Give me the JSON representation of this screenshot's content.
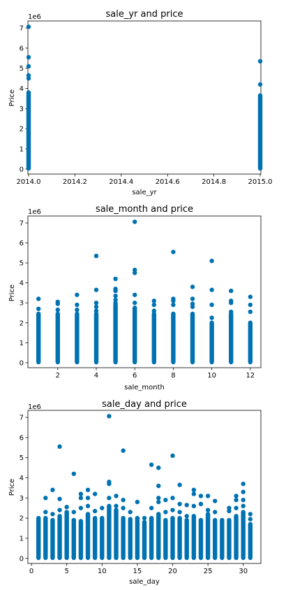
{
  "chart_data": [
    {
      "type": "scatter",
      "title": "sale_yr and price",
      "xlabel": "sale_yr",
      "ylabel": "Price",
      "offset_label": "1e6",
      "xlim": [
        1.997,
        3.003
      ],
      "ylim": [
        -0.25,
        7.35
      ],
      "xticks": [
        2014.0,
        2014.2,
        2014.4,
        2014.6,
        2014.8,
        2015.0
      ],
      "xtick_labels": [
        "2014.0",
        "2014.2",
        "2014.4",
        "2014.6",
        "2014.8",
        "2015.0"
      ],
      "yticks": [
        0,
        1,
        2,
        3,
        4,
        5,
        6,
        7
      ],
      "ytick_labels": [
        "0",
        "1",
        "2",
        "3",
        "4",
        "5",
        "6",
        "7"
      ],
      "color": "#0072b2",
      "x_index_base": 2012,
      "points": [
        {
          "x": 2014,
          "y": 7.06
        },
        {
          "x": 2014,
          "y": 5.55
        },
        {
          "x": 2014,
          "y": 5.1
        },
        {
          "x": 2014,
          "y": 4.65
        },
        {
          "x": 2014,
          "y": 4.5
        },
        {
          "x": 2015,
          "y": 5.35
        },
        {
          "x": 2015,
          "y": 4.2
        }
      ],
      "columns": [
        {
          "x": 2014,
          "top": 3.8
        },
        {
          "x": 2015,
          "top": 3.65
        }
      ]
    },
    {
      "type": "scatter",
      "title": "sale_month and price",
      "xlabel": "sale_month",
      "ylabel": "Price",
      "offset_label": "1e6",
      "xlim": [
        0.45,
        12.55
      ],
      "ylim": [
        -0.25,
        7.35
      ],
      "xticks": [
        2,
        4,
        6,
        8,
        10,
        12
      ],
      "xtick_labels": [
        "2",
        "4",
        "6",
        "8",
        "10",
        "12"
      ],
      "yticks": [
        0,
        1,
        2,
        3,
        4,
        5,
        6,
        7
      ],
      "ytick_labels": [
        "0",
        "1",
        "2",
        "3",
        "4",
        "5",
        "6",
        "7"
      ],
      "color": "#0072b2",
      "points": [
        {
          "x": 1,
          "y": 3.2
        },
        {
          "x": 1,
          "y": 2.7
        },
        {
          "x": 2,
          "y": 3.05
        },
        {
          "x": 2,
          "y": 2.95
        },
        {
          "x": 2,
          "y": 2.65
        },
        {
          "x": 3,
          "y": 3.4
        },
        {
          "x": 3,
          "y": 2.9
        },
        {
          "x": 3,
          "y": 2.65
        },
        {
          "x": 4,
          "y": 5.35
        },
        {
          "x": 4,
          "y": 3.65
        },
        {
          "x": 4,
          "y": 3.0
        },
        {
          "x": 4,
          "y": 2.8
        },
        {
          "x": 4,
          "y": 2.6
        },
        {
          "x": 5,
          "y": 4.2
        },
        {
          "x": 5,
          "y": 3.7
        },
        {
          "x": 5,
          "y": 3.6
        },
        {
          "x": 5,
          "y": 3.35
        },
        {
          "x": 5,
          "y": 3.15
        },
        {
          "x": 5,
          "y": 3.0
        },
        {
          "x": 6,
          "y": 7.06
        },
        {
          "x": 6,
          "y": 4.65
        },
        {
          "x": 6,
          "y": 4.5
        },
        {
          "x": 6,
          "y": 3.4
        },
        {
          "x": 6,
          "y": 3.0
        },
        {
          "x": 7,
          "y": 3.1
        },
        {
          "x": 7,
          "y": 2.9
        },
        {
          "x": 7,
          "y": 2.6
        },
        {
          "x": 8,
          "y": 5.55
        },
        {
          "x": 8,
          "y": 3.2
        },
        {
          "x": 8,
          "y": 3.1
        },
        {
          "x": 8,
          "y": 2.9
        },
        {
          "x": 9,
          "y": 3.8
        },
        {
          "x": 9,
          "y": 3.2
        },
        {
          "x": 9,
          "y": 2.95
        },
        {
          "x": 9,
          "y": 2.8
        },
        {
          "x": 10,
          "y": 5.1
        },
        {
          "x": 10,
          "y": 3.65
        },
        {
          "x": 10,
          "y": 2.9
        },
        {
          "x": 10,
          "y": 2.25
        },
        {
          "x": 11,
          "y": 3.6
        },
        {
          "x": 11,
          "y": 3.1
        },
        {
          "x": 11,
          "y": 3.0
        },
        {
          "x": 11,
          "y": 2.55
        },
        {
          "x": 12,
          "y": 3.3
        },
        {
          "x": 12,
          "y": 2.9
        },
        {
          "x": 12,
          "y": 2.55
        }
      ],
      "columns": [
        {
          "x": 1,
          "top": 2.45
        },
        {
          "x": 2,
          "top": 2.45
        },
        {
          "x": 3,
          "top": 2.45
        },
        {
          "x": 4,
          "top": 2.45
        },
        {
          "x": 5,
          "top": 2.9
        },
        {
          "x": 6,
          "top": 2.75
        },
        {
          "x": 7,
          "top": 2.45
        },
        {
          "x": 8,
          "top": 2.45
        },
        {
          "x": 9,
          "top": 2.45
        },
        {
          "x": 10,
          "top": 2.0
        },
        {
          "x": 11,
          "top": 2.45
        },
        {
          "x": 12,
          "top": 2.0
        }
      ]
    },
    {
      "type": "scatter",
      "title": "sale_day and price",
      "xlabel": "sale_day",
      "ylabel": "Price",
      "offset_label": "1e6",
      "xlim": [
        -0.5,
        32.5
      ],
      "ylim": [
        -0.25,
        7.35
      ],
      "xticks": [
        0,
        5,
        10,
        15,
        20,
        25,
        30
      ],
      "xtick_labels": [
        "0",
        "5",
        "10",
        "15",
        "20",
        "25",
        "30"
      ],
      "yticks": [
        0,
        1,
        2,
        3,
        4,
        5,
        6,
        7
      ],
      "ytick_labels": [
        "0",
        "1",
        "2",
        "3",
        "4",
        "5",
        "6",
        "7"
      ],
      "color": "#0072b2",
      "points": [
        {
          "x": 2,
          "y": 3.0
        },
        {
          "x": 2,
          "y": 2.3
        },
        {
          "x": 3,
          "y": 3.4
        },
        {
          "x": 3,
          "y": 2.2
        },
        {
          "x": 4,
          "y": 5.55
        },
        {
          "x": 4,
          "y": 2.95
        },
        {
          "x": 4,
          "y": 2.4
        },
        {
          "x": 5,
          "y": 2.55
        },
        {
          "x": 6,
          "y": 4.2
        },
        {
          "x": 6,
          "y": 2.3
        },
        {
          "x": 7,
          "y": 3.2
        },
        {
          "x": 7,
          "y": 3.0
        },
        {
          "x": 7,
          "y": 2.5
        },
        {
          "x": 8,
          "y": 3.4
        },
        {
          "x": 8,
          "y": 3.0
        },
        {
          "x": 8,
          "y": 2.6
        },
        {
          "x": 9,
          "y": 3.2
        },
        {
          "x": 9,
          "y": 2.35
        },
        {
          "x": 10,
          "y": 2.5
        },
        {
          "x": 11,
          "y": 7.06
        },
        {
          "x": 11,
          "y": 3.8
        },
        {
          "x": 11,
          "y": 3.7
        },
        {
          "x": 11,
          "y": 3.0
        },
        {
          "x": 12,
          "y": 3.1
        },
        {
          "x": 12,
          "y": 2.6
        },
        {
          "x": 13,
          "y": 5.35
        },
        {
          "x": 13,
          "y": 2.9
        },
        {
          "x": 13,
          "y": 2.5
        },
        {
          "x": 14,
          "y": 2.3
        },
        {
          "x": 15,
          "y": 2.8
        },
        {
          "x": 16,
          "y": 2.0
        },
        {
          "x": 17,
          "y": 4.65
        },
        {
          "x": 17,
          "y": 2.5
        },
        {
          "x": 18,
          "y": 4.5
        },
        {
          "x": 18,
          "y": 3.6
        },
        {
          "x": 18,
          "y": 3.0
        },
        {
          "x": 18,
          "y": 2.8
        },
        {
          "x": 19,
          "y": 2.9
        },
        {
          "x": 19,
          "y": 2.3
        },
        {
          "x": 20,
          "y": 5.1
        },
        {
          "x": 20,
          "y": 3.0
        },
        {
          "x": 20,
          "y": 2.4
        },
        {
          "x": 21,
          "y": 3.65
        },
        {
          "x": 21,
          "y": 2.7
        },
        {
          "x": 21,
          "y": 2.3
        },
        {
          "x": 22,
          "y": 2.65
        },
        {
          "x": 22,
          "y": 2.1
        },
        {
          "x": 23,
          "y": 3.4
        },
        {
          "x": 23,
          "y": 3.2
        },
        {
          "x": 23,
          "y": 2.6
        },
        {
          "x": 24,
          "y": 3.1
        },
        {
          "x": 24,
          "y": 2.7
        },
        {
          "x": 25,
          "y": 3.1
        },
        {
          "x": 25,
          "y": 2.4
        },
        {
          "x": 26,
          "y": 2.85
        },
        {
          "x": 26,
          "y": 2.3
        },
        {
          "x": 28,
          "y": 2.5
        },
        {
          "x": 28,
          "y": 2.35
        },
        {
          "x": 29,
          "y": 3.1
        },
        {
          "x": 29,
          "y": 2.9
        },
        {
          "x": 29,
          "y": 2.5
        },
        {
          "x": 30,
          "y": 3.7
        },
        {
          "x": 30,
          "y": 3.3
        },
        {
          "x": 30,
          "y": 2.9
        },
        {
          "x": 30,
          "y": 2.6
        },
        {
          "x": 31,
          "y": 2.2
        },
        {
          "x": 31,
          "y": 1.95
        }
      ],
      "columns": [
        {
          "x": 1,
          "top": 2.0
        },
        {
          "x": 2,
          "top": 2.0
        },
        {
          "x": 3,
          "top": 1.9
        },
        {
          "x": 4,
          "top": 2.1
        },
        {
          "x": 5,
          "top": 2.3
        },
        {
          "x": 6,
          "top": 1.9
        },
        {
          "x": 7,
          "top": 1.85
        },
        {
          "x": 8,
          "top": 2.2
        },
        {
          "x": 9,
          "top": 2.0
        },
        {
          "x": 10,
          "top": 2.0
        },
        {
          "x": 11,
          "top": 2.6
        },
        {
          "x": 12,
          "top": 2.4
        },
        {
          "x": 13,
          "top": 2.0
        },
        {
          "x": 14,
          "top": 1.95
        },
        {
          "x": 15,
          "top": 2.0
        },
        {
          "x": 16,
          "top": 1.8
        },
        {
          "x": 17,
          "top": 2.0
        },
        {
          "x": 18,
          "top": 2.2
        },
        {
          "x": 19,
          "top": 1.9
        },
        {
          "x": 20,
          "top": 2.0
        },
        {
          "x": 21,
          "top": 2.0
        },
        {
          "x": 22,
          "top": 1.9
        },
        {
          "x": 23,
          "top": 2.1
        },
        {
          "x": 24,
          "top": 1.9
        },
        {
          "x": 25,
          "top": 2.2
        },
        {
          "x": 26,
          "top": 1.9
        },
        {
          "x": 27,
          "top": 1.9
        },
        {
          "x": 28,
          "top": 1.9
        },
        {
          "x": 29,
          "top": 2.1
        },
        {
          "x": 30,
          "top": 2.3
        },
        {
          "x": 31,
          "top": 1.7
        }
      ]
    }
  ]
}
